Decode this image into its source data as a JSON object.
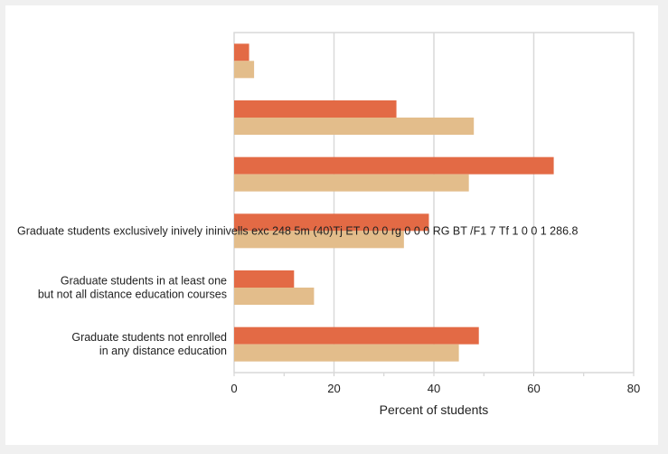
{
  "chart_data": {
    "type": "bar",
    "orientation": "horizontal",
    "xlabel": "Percent of students",
    "xlim": [
      0,
      80
    ],
    "xticks": [
      0,
      20,
      40,
      60,
      80
    ],
    "grid": true,
    "categories": [
      "",
      "",
      "",
      "Graduate students exclusively inively ininivells exc 248 5m (40)Tj ET 0 0 0 rg 0 0 0 RG BT /F1 7 Tf 1 0 0 1 286.8",
      "Graduate students in at least one\nbut not all distance education courses",
      "Graduate students not enrolled\nin any distance education"
    ],
    "series": [
      {
        "color": "#e36a45",
        "values": [
          3,
          32.5,
          64,
          39,
          12,
          49
        ]
      },
      {
        "color": "#e3bd8b",
        "values": [
          4,
          48,
          47,
          34,
          16,
          45
        ]
      }
    ]
  }
}
